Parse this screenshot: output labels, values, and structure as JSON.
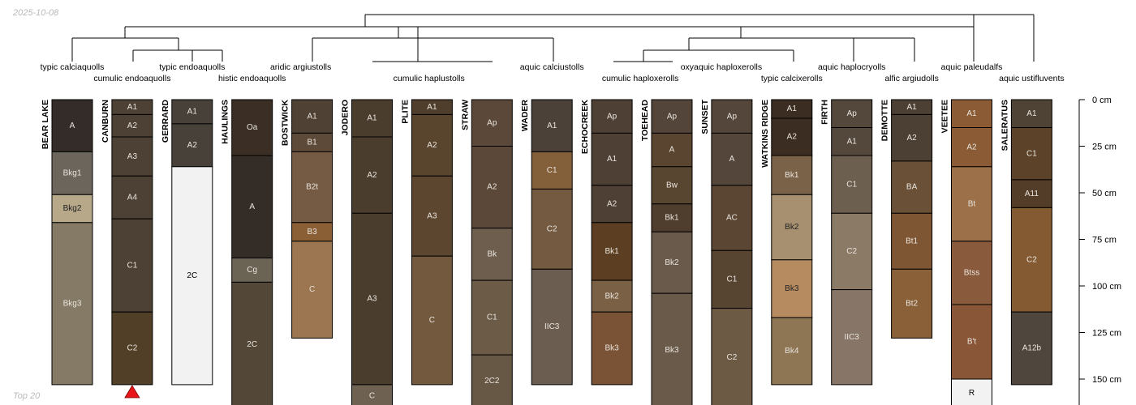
{
  "date_label": "2025-10-08",
  "footer_label": "Top 20",
  "depth_axis": {
    "unit": "cm",
    "max_depth": 165,
    "ticks": [
      {
        "depth": 0,
        "label": "0 cm"
      },
      {
        "depth": 25,
        "label": "25 cm"
      },
      {
        "depth": 50,
        "label": "50 cm"
      },
      {
        "depth": 75,
        "label": "75 cm"
      },
      {
        "depth": 100,
        "label": "100 cm"
      },
      {
        "depth": 125,
        "label": "125 cm"
      },
      {
        "depth": 150,
        "label": "150 cm"
      }
    ]
  },
  "colors": {
    "line": "#000000",
    "marker": "#e8161a",
    "dark_text": "#000000",
    "light_text": "#ffffff"
  },
  "marked_profile": "CANBURN",
  "profiles": [
    {
      "name": "BEAR LAKE",
      "taxon": "typic calciaquolls",
      "horizons": [
        {
          "name": "A",
          "top": 0,
          "bottom": 28,
          "color": "#332c28"
        },
        {
          "name": "Bkg1",
          "top": 28,
          "bottom": 51,
          "color": "#6c655c"
        },
        {
          "name": "Bkg2",
          "top": 51,
          "bottom": 66,
          "color": "#b7a88a"
        },
        {
          "name": "Bkg3",
          "top": 66,
          "bottom": 153,
          "color": "#857a66"
        }
      ]
    },
    {
      "name": "CANBURN",
      "taxon": "cumulic endoaquolls",
      "horizons": [
        {
          "name": "A1",
          "top": 0,
          "bottom": 8,
          "color": "#4d4034"
        },
        {
          "name": "A2",
          "top": 8,
          "bottom": 20,
          "color": "#4d4034"
        },
        {
          "name": "A3",
          "top": 20,
          "bottom": 41,
          "color": "#4d4034"
        },
        {
          "name": "A4",
          "top": 41,
          "bottom": 64,
          "color": "#4d4034"
        },
        {
          "name": "C1",
          "top": 64,
          "bottom": 114,
          "color": "#4d4034"
        },
        {
          "name": "C2",
          "top": 114,
          "bottom": 153,
          "color": "#523f28"
        }
      ]
    },
    {
      "name": "GERRARD",
      "taxon": "typic endoaquolls",
      "horizons": [
        {
          "name": "A1",
          "top": 0,
          "bottom": 13,
          "color": "#48413a"
        },
        {
          "name": "A2",
          "top": 13,
          "bottom": 36,
          "color": "#48413a"
        },
        {
          "name": "2C",
          "top": 36,
          "bottom": 153,
          "color": "#f2f2f2"
        }
      ]
    },
    {
      "name": "HAULINGS",
      "taxon": "histic endoaquolls",
      "horizons": [
        {
          "name": "Oa",
          "top": 0,
          "bottom": 30,
          "color": "#3b2f25"
        },
        {
          "name": "A",
          "top": 30,
          "bottom": 85,
          "color": "#342c27"
        },
        {
          "name": "Cg",
          "top": 85,
          "bottom": 98,
          "color": "#6b6353"
        },
        {
          "name": "2C",
          "top": 98,
          "bottom": 165,
          "color": "#534838"
        }
      ]
    },
    {
      "name": "BOSTWICK",
      "taxon": "aridic argiustolls",
      "horizons": [
        {
          "name": "A1",
          "top": 0,
          "bottom": 18,
          "color": "#4f4133"
        },
        {
          "name": "B1",
          "top": 18,
          "bottom": 28,
          "color": "#5e4a38"
        },
        {
          "name": "B2t",
          "top": 28,
          "bottom": 66,
          "color": "#765b44"
        },
        {
          "name": "B3",
          "top": 66,
          "bottom": 76,
          "color": "#8b5f36"
        },
        {
          "name": "C",
          "top": 76,
          "bottom": 128,
          "color": "#9b7650"
        }
      ]
    },
    {
      "name": "JODERO",
      "taxon": "cumulic haplustolls",
      "horizons": [
        {
          "name": "A1",
          "top": 0,
          "bottom": 20,
          "color": "#4b3d2e"
        },
        {
          "name": "A2",
          "top": 20,
          "bottom": 61,
          "color": "#4b3d2e"
        },
        {
          "name": "A3",
          "top": 61,
          "bottom": 153,
          "color": "#4b3d2e"
        },
        {
          "name": "C",
          "top": 153,
          "bottom": 165,
          "color": "#6e6152"
        }
      ]
    },
    {
      "name": "PLITE",
      "taxon": "",
      "horizons": [
        {
          "name": "A1",
          "top": 0,
          "bottom": 8,
          "color": "#4f3e2c"
        },
        {
          "name": "A2",
          "top": 8,
          "bottom": 41,
          "color": "#59442d"
        },
        {
          "name": "A3",
          "top": 41,
          "bottom": 84,
          "color": "#5c4630"
        },
        {
          "name": "C",
          "top": 84,
          "bottom": 153,
          "color": "#735a3e"
        }
      ]
    },
    {
      "name": "STRAW",
      "taxon": "",
      "horizons": [
        {
          "name": "Ap",
          "top": 0,
          "bottom": 25,
          "color": "#5b4839"
        },
        {
          "name": "A2",
          "top": 25,
          "bottom": 69,
          "color": "#5b4839"
        },
        {
          "name": "Bk",
          "top": 69,
          "bottom": 97,
          "color": "#6d5e4e"
        },
        {
          "name": "C1",
          "top": 97,
          "bottom": 137,
          "color": "#6c5c47"
        },
        {
          "name": "2C2",
          "top": 137,
          "bottom": 165,
          "color": "#675845"
        }
      ]
    },
    {
      "name": "WADER",
      "taxon": "aquic calciustolls",
      "horizons": [
        {
          "name": "A1",
          "top": 0,
          "bottom": 28,
          "color": "#4b4139"
        },
        {
          "name": "C1",
          "top": 28,
          "bottom": 48,
          "color": "#84603a"
        },
        {
          "name": "C2",
          "top": 48,
          "bottom": 91,
          "color": "#735a40"
        },
        {
          "name": "IIC3",
          "top": 91,
          "bottom": 153,
          "color": "#6b5e50"
        }
      ]
    },
    {
      "name": "ECHOCREEK",
      "taxon": "cumulic haploxerolls",
      "horizons": [
        {
          "name": "Ap",
          "top": 0,
          "bottom": 18,
          "color": "#4f4035"
        },
        {
          "name": "A1",
          "top": 18,
          "bottom": 46,
          "color": "#4f4035"
        },
        {
          "name": "A2",
          "top": 46,
          "bottom": 66,
          "color": "#4f4035"
        },
        {
          "name": "Bk1",
          "top": 66,
          "bottom": 97,
          "color": "#5c3f22"
        },
        {
          "name": "Bk2",
          "top": 97,
          "bottom": 114,
          "color": "#7a6145"
        },
        {
          "name": "Bk3",
          "top": 114,
          "bottom": 153,
          "color": "#7a5336"
        }
      ]
    },
    {
      "name": "TOEHEAD",
      "taxon": "",
      "horizons": [
        {
          "name": "Ap",
          "top": 0,
          "bottom": 18,
          "color": "#54453a"
        },
        {
          "name": "A",
          "top": 18,
          "bottom": 36,
          "color": "#5a4630"
        },
        {
          "name": "Bw",
          "top": 36,
          "bottom": 56,
          "color": "#594631"
        },
        {
          "name": "Bk1",
          "top": 56,
          "bottom": 71,
          "color": "#4f3d2d"
        },
        {
          "name": "Bk2",
          "top": 71,
          "bottom": 104,
          "color": "#6a5a4b"
        },
        {
          "name": "Bk3",
          "top": 104,
          "bottom": 165,
          "color": "#6a5a4a"
        }
      ]
    },
    {
      "name": "SUNSET",
      "taxon": "oxyaquic haploxerolls",
      "horizons": [
        {
          "name": "Ap",
          "top": 0,
          "bottom": 18,
          "color": "#54463a"
        },
        {
          "name": "A",
          "top": 18,
          "bottom": 46,
          "color": "#54463a"
        },
        {
          "name": "AC",
          "top": 46,
          "bottom": 81,
          "color": "#5a4632"
        },
        {
          "name": "C1",
          "top": 81,
          "bottom": 112,
          "color": "#574431"
        },
        {
          "name": "C2",
          "top": 112,
          "bottom": 165,
          "color": "#6d5a45"
        }
      ]
    },
    {
      "name": "WATKINS RIDGE",
      "taxon": "typic calcixerolls",
      "horizons": [
        {
          "name": "A1",
          "top": 0,
          "bottom": 10,
          "color": "#3b2d21"
        },
        {
          "name": "A2",
          "top": 10,
          "bottom": 30,
          "color": "#3b2d21"
        },
        {
          "name": "Bk1",
          "top": 30,
          "bottom": 51,
          "color": "#7a6248"
        },
        {
          "name": "Bk2",
          "top": 51,
          "bottom": 86,
          "color": "#a6906f"
        },
        {
          "name": "Bk3",
          "top": 86,
          "bottom": 117,
          "color": "#b68b60"
        },
        {
          "name": "Bk4",
          "top": 117,
          "bottom": 153,
          "color": "#8e7554"
        }
      ]
    },
    {
      "name": "FIRTH",
      "taxon": "aquic haplocryolls",
      "horizons": [
        {
          "name": "Ap",
          "top": 0,
          "bottom": 15,
          "color": "#54473c"
        },
        {
          "name": "A1",
          "top": 15,
          "bottom": 30,
          "color": "#54473c"
        },
        {
          "name": "C1",
          "top": 30,
          "bottom": 61,
          "color": "#6c5f4f"
        },
        {
          "name": "C2",
          "top": 61,
          "bottom": 102,
          "color": "#8a7a66"
        },
        {
          "name": "IIC3",
          "top": 102,
          "bottom": 153,
          "color": "#877667"
        }
      ]
    },
    {
      "name": "DEMOTTE",
      "taxon": "alfic argiudolls",
      "horizons": [
        {
          "name": "A1",
          "top": 0,
          "bottom": 8,
          "color": "#4c3f33"
        },
        {
          "name": "A2",
          "top": 8,
          "bottom": 33,
          "color": "#4c3f33"
        },
        {
          "name": "BA",
          "top": 33,
          "bottom": 61,
          "color": "#6b5038"
        },
        {
          "name": "Bt1",
          "top": 61,
          "bottom": 91,
          "color": "#7f5634"
        },
        {
          "name": "Bt2",
          "top": 91,
          "bottom": 128,
          "color": "#8a6039"
        }
      ]
    },
    {
      "name": "VEETEE",
      "taxon": "aquic paleudalfs",
      "horizons": [
        {
          "name": "A1",
          "top": 0,
          "bottom": 15,
          "color": "#8a5b34"
        },
        {
          "name": "A2",
          "top": 15,
          "bottom": 36,
          "color": "#8a5b34"
        },
        {
          "name": "Bt",
          "top": 36,
          "bottom": 76,
          "color": "#9c7049"
        },
        {
          "name": "Btss",
          "top": 76,
          "bottom": 110,
          "color": "#8a5a3d"
        },
        {
          "name": "B't",
          "top": 110,
          "bottom": 150,
          "color": "#8a5638"
        },
        {
          "name": "R",
          "top": 150,
          "bottom": 165,
          "color": "#f2f2f2"
        }
      ]
    },
    {
      "name": "SALERATUS",
      "taxon": "aquic ustifluvents",
      "horizons": [
        {
          "name": "A1",
          "top": 0,
          "bottom": 15,
          "color": "#4f4336"
        },
        {
          "name": "C1",
          "top": 15,
          "bottom": 43,
          "color": "#5b4228"
        },
        {
          "name": "A11",
          "top": 43,
          "bottom": 58,
          "color": "#533d28"
        },
        {
          "name": "C2",
          "top": 58,
          "bottom": 114,
          "color": "#845a33"
        },
        {
          "name": "A12b",
          "top": 114,
          "bottom": 153,
          "color": "#4f463d"
        }
      ]
    }
  ]
}
